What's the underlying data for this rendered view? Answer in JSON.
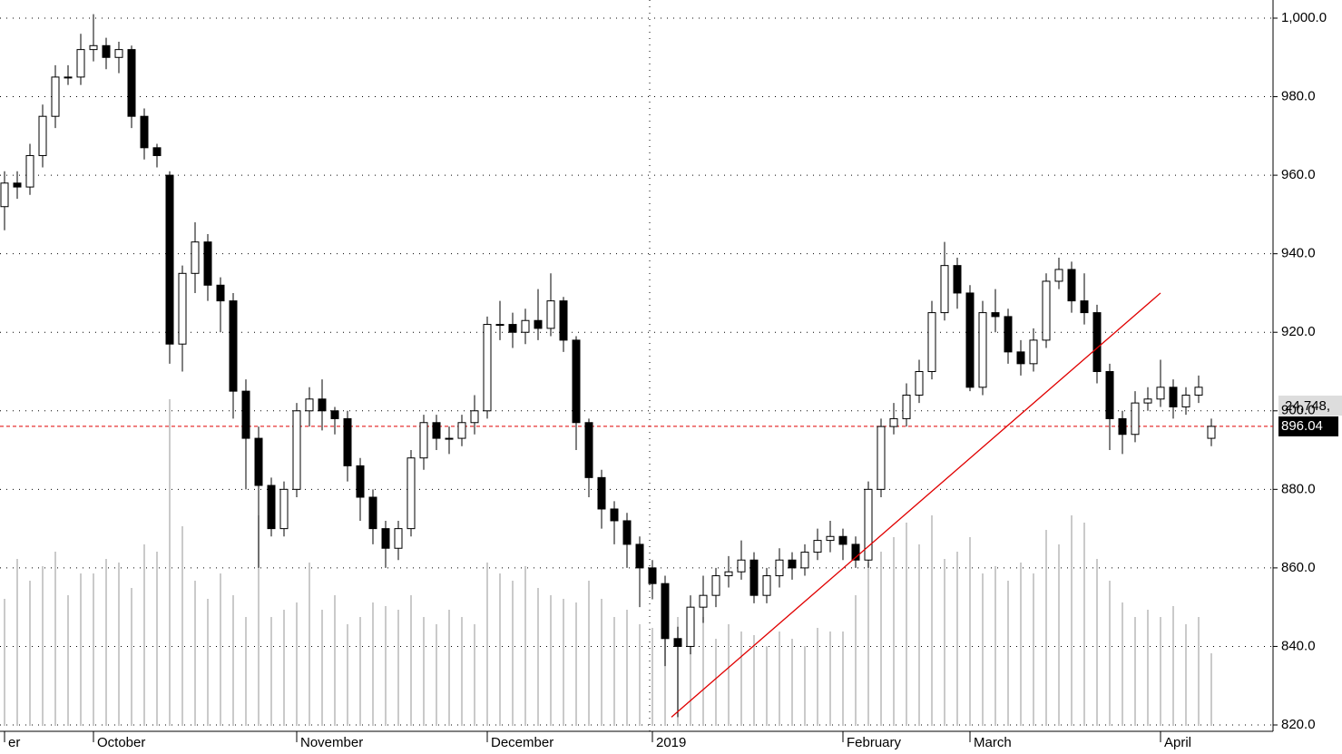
{
  "chart_data": {
    "type": "candlestick",
    "categories": [
      "er",
      null,
      null,
      null,
      null,
      null,
      null,
      "October",
      null,
      null,
      null,
      null,
      null,
      null,
      null,
      null,
      null,
      null,
      null,
      null,
      null,
      null,
      null,
      "November",
      null,
      null,
      null,
      null,
      null,
      null,
      null,
      null,
      null,
      null,
      null,
      null,
      null,
      null,
      "December",
      null,
      null,
      null,
      null,
      null,
      null,
      null,
      null,
      null,
      null,
      null,
      null,
      "2019",
      null,
      null,
      null,
      null,
      null,
      null,
      null,
      null,
      null,
      null,
      null,
      null,
      null,
      null,
      "February",
      null,
      null,
      null,
      null,
      null,
      null,
      null,
      null,
      null,
      "March",
      null,
      null,
      null,
      null,
      null,
      null,
      null,
      null,
      null,
      null,
      null,
      null,
      null,
      null,
      "April",
      null,
      null,
      null,
      null
    ],
    "open": [
      952,
      958,
      957,
      965,
      975,
      985,
      985,
      992,
      993,
      990,
      992,
      975,
      967,
      960,
      917,
      935,
      943,
      932,
      928,
      905,
      893,
      881,
      870,
      880,
      900,
      903,
      900,
      898,
      886,
      878,
      870,
      865,
      870,
      888,
      897,
      893,
      893,
      897,
      900,
      922,
      922,
      920,
      923,
      921,
      928,
      918,
      897,
      883,
      875,
      872,
      866,
      860,
      856,
      842,
      840,
      850,
      853,
      858,
      859,
      862,
      853,
      858,
      862,
      860,
      864,
      867,
      868,
      866,
      862,
      880,
      896,
      898,
      904,
      910,
      925,
      937,
      930,
      906,
      925,
      924,
      915,
      912,
      918,
      933,
      936,
      928,
      925,
      910,
      898,
      894,
      902,
      903,
      906,
      901,
      904,
      893
    ],
    "high": [
      961,
      961,
      968,
      978,
      988,
      988,
      996,
      1001,
      995,
      994,
      993,
      977,
      968,
      961,
      937,
      948,
      945,
      934,
      930,
      908,
      896,
      883,
      882,
      902,
      906,
      908,
      901,
      900,
      888,
      880,
      872,
      872,
      890,
      899,
      899,
      896,
      899,
      904,
      924,
      928,
      925,
      926,
      931,
      935,
      929,
      919,
      898,
      885,
      877,
      874,
      868,
      862,
      858,
      845,
      853,
      858,
      860,
      863,
      867,
      864,
      860,
      865,
      864,
      866,
      870,
      872,
      870,
      868,
      882,
      898,
      902,
      907,
      913,
      928,
      943,
      939,
      932,
      928,
      931,
      926,
      918,
      921,
      935,
      939,
      938,
      935,
      927,
      912,
      900,
      905,
      906,
      913,
      908,
      906,
      909,
      898
    ],
    "low": [
      946,
      954,
      955,
      962,
      972,
      983,
      983,
      989,
      987,
      986,
      972,
      964,
      962,
      912,
      910,
      930,
      928,
      920,
      898,
      880,
      860,
      868,
      868,
      878,
      896,
      895,
      894,
      882,
      872,
      866,
      860,
      862,
      868,
      885,
      890,
      889,
      891,
      894,
      898,
      918,
      916,
      917,
      918,
      919,
      915,
      890,
      878,
      870,
      866,
      860,
      850,
      852,
      835,
      822,
      838,
      846,
      850,
      855,
      857,
      851,
      851,
      855,
      857,
      858,
      862,
      864,
      862,
      860,
      860,
      878,
      894,
      896,
      902,
      908,
      923,
      926,
      905,
      904,
      920,
      912,
      909,
      910,
      916,
      931,
      925,
      922,
      907,
      890,
      889,
      892,
      900,
      901,
      898,
      899,
      902,
      891
    ],
    "close": [
      958,
      957,
      965,
      975,
      985,
      985,
      992,
      993,
      990,
      992,
      975,
      967,
      965,
      917,
      935,
      943,
      932,
      928,
      905,
      893,
      881,
      870,
      880,
      900,
      903,
      900,
      898,
      886,
      878,
      870,
      865,
      870,
      888,
      897,
      893,
      893,
      897,
      900,
      922,
      922,
      920,
      923,
      921,
      928,
      918,
      897,
      883,
      875,
      872,
      866,
      860,
      856,
      842,
      840,
      850,
      853,
      858,
      859,
      862,
      853,
      858,
      862,
      860,
      864,
      867,
      868,
      866,
      862,
      880,
      896,
      898,
      904,
      910,
      925,
      937,
      930,
      906,
      925,
      924,
      915,
      912,
      918,
      933,
      936,
      928,
      925,
      910,
      898,
      894,
      902,
      903,
      906,
      901,
      904,
      906,
      896.04
    ],
    "volume": [
      35,
      46,
      40,
      44,
      48,
      36,
      42,
      42,
      46,
      45,
      38,
      50,
      48,
      90,
      55,
      40,
      35,
      42,
      36,
      30,
      58,
      30,
      32,
      34,
      45,
      32,
      36,
      28,
      30,
      34,
      33,
      32,
      36,
      30,
      28,
      32,
      30,
      28,
      45,
      42,
      40,
      44,
      38,
      36,
      35,
      34,
      40,
      35,
      30,
      32,
      28,
      27,
      36,
      30,
      32,
      30,
      24,
      28,
      26,
      25,
      22,
      26,
      24,
      22,
      27,
      26,
      26,
      36,
      45,
      48,
      52,
      56,
      50,
      58,
      46,
      48,
      52,
      42,
      44,
      40,
      45,
      42,
      54,
      50,
      58,
      56,
      46,
      40,
      34,
      30,
      32,
      30,
      33,
      28,
      30,
      20
    ],
    "volume_ylim": [
      0,
      100
    ],
    "volume_color": "#b8b8b8",
    "ylim": [
      820,
      1000
    ],
    "yticks": [
      {
        "value": 820,
        "label": "820.0"
      },
      {
        "value": 840,
        "label": "840.0"
      },
      {
        "value": 860,
        "label": "860.0"
      },
      {
        "value": 880,
        "label": "880.0"
      },
      {
        "value": 900,
        "label": "900.0"
      },
      {
        "value": 920,
        "label": "920.0"
      },
      {
        "value": 940,
        "label": "940.0"
      },
      {
        "value": 960,
        "label": "960.0"
      },
      {
        "value": 980,
        "label": "980.0"
      },
      {
        "value": 1000,
        "label": "1,000.0"
      }
    ],
    "grid": true,
    "up_color": "#ffffff",
    "down_color": "#000000",
    "last_price_color": "#e00000",
    "volume_label": "24,748,",
    "trend_line": {
      "x": [
        52.5,
        91
      ],
      "y": [
        822,
        930
      ],
      "color": "#e00000"
    }
  }
}
